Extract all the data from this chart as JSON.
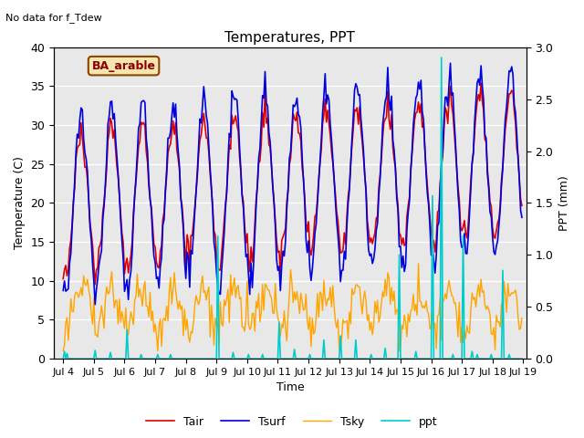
{
  "title": "Temperatures, PPT",
  "subtitle": "No data for f_Tdew",
  "annotation": "BA_arable",
  "xlabel": "Time",
  "ylabel_left": "Temperature (C)",
  "ylabel_right": "PPT (mm)",
  "ylim_left": [
    0,
    40
  ],
  "ylim_right": [
    0,
    3.0
  ],
  "x_start_day": 3.7,
  "x_end_day": 19.1,
  "xtick_labels": [
    "Jul 4",
    "Jul 5",
    "Jul 6",
    "Jul 7",
    "Jul 8",
    "Jul 9",
    "Jul 10",
    "Jul 11",
    "Jul 12",
    "Jul 13",
    "Jul 14",
    "Jul 15",
    "Jul 16",
    "Jul 17",
    "Jul 18",
    "Jul 19"
  ],
  "xtick_positions": [
    4,
    5,
    6,
    7,
    8,
    9,
    10,
    11,
    12,
    13,
    14,
    15,
    16,
    17,
    18,
    19
  ],
  "colors": {
    "Tair": "#dd0000",
    "Tsurf": "#0000dd",
    "Tsky": "#ffa500",
    "ppt": "#00cccc",
    "background_upper": "#e0e0e0",
    "background_lower": "#f0f0f0",
    "grid": "#ffffff"
  },
  "legend": [
    "Tair",
    "Tsurf",
    "Tsky",
    "ppt"
  ],
  "figsize": [
    6.4,
    4.8
  ],
  "dpi": 100
}
